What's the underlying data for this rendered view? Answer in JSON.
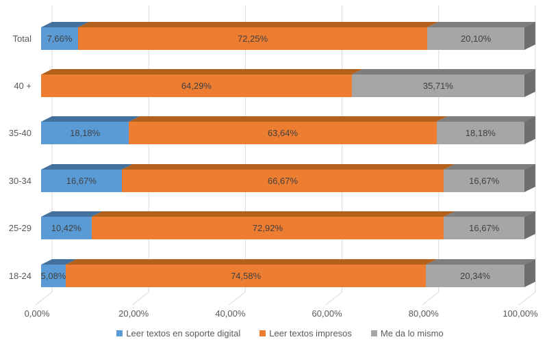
{
  "chart_data": {
    "type": "bar",
    "subtype": "horizontal-stacked-3d",
    "title": "",
    "categories": [
      "Total",
      "40 +",
      "35-40",
      "30-34",
      "25-29",
      "18-24"
    ],
    "series": [
      {
        "name": "Leer textos en soporte digital",
        "color": "#5B9BD5",
        "color_dark": "#41719C",
        "values": [
          7.66,
          0,
          18.18,
          16.67,
          10.42,
          5.08
        ],
        "labels": [
          "7,66%",
          "",
          "18,18%",
          "16,67%",
          "10,42%",
          "5,08%"
        ]
      },
      {
        "name": "Leer textos impresos",
        "color": "#ED7D31",
        "color_dark": "#B4611E",
        "values": [
          72.25,
          64.29,
          63.64,
          66.67,
          72.92,
          74.58
        ],
        "labels": [
          "72,25%",
          "64,29%",
          "63,64%",
          "66,67%",
          "72,92%",
          "74,58%"
        ]
      },
      {
        "name": "Me da lo mismo",
        "color": "#A6A6A6",
        "color_dark": "#7E7E7E",
        "color_side": "#6E6E6E",
        "values": [
          20.1,
          35.71,
          18.18,
          16.67,
          16.67,
          20.34
        ],
        "labels": [
          "20,10%",
          "35,71%",
          "18,18%",
          "16,67%",
          "16,67%",
          "20,34%"
        ]
      }
    ],
    "x_axis": {
      "min": 0,
      "max": 100,
      "tick_labels": [
        "0,00%",
        "20,00%",
        "40,00%",
        "60,00%",
        "80,00%",
        "100,00%"
      ]
    },
    "legend": {
      "position": "bottom",
      "items": [
        "Leer textos en soporte digital",
        "Leer textos impresos",
        "Me da lo mismo"
      ]
    },
    "gridlines": true,
    "gridline_color": "#D9D9D9",
    "bar_label_color": "#404040",
    "axis_text_color": "#595959",
    "background_color": "#FFFFFF"
  }
}
